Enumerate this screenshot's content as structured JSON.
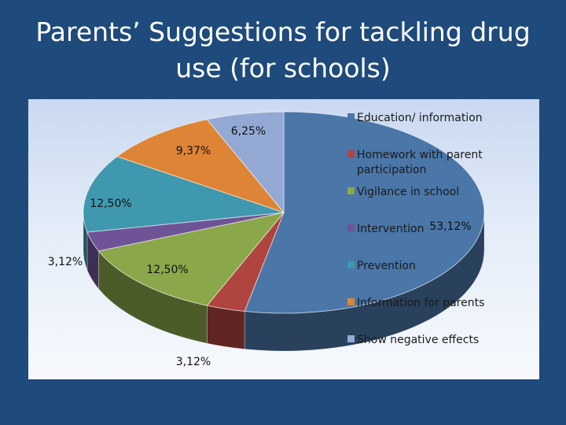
{
  "slide": {
    "title_line1": "Parents’ Suggestions for tackling drug",
    "title_line2": "use (for schools)"
  },
  "chart_data": {
    "type": "pie",
    "title": "",
    "three_d": true,
    "legend_position": "right",
    "slices": [
      {
        "name": "Education/ information",
        "value": 53.12,
        "label": "53,12%",
        "color": "#4a76a8"
      },
      {
        "name": "Homework with parent participation",
        "value": 3.12,
        "label": "3,12%",
        "color": "#b0453f"
      },
      {
        "name": "Vigilance in school",
        "value": 12.5,
        "label": "12,50%",
        "color": "#8aa74a"
      },
      {
        "name": "Intervention",
        "value": 3.12,
        "label": "3,12%",
        "color": "#6e5496"
      },
      {
        "name": "Prevention",
        "value": 12.5,
        "label": "12,50%",
        "color": "#3f98ad"
      },
      {
        "name": "Information for parents",
        "value": 9.37,
        "label": "9,37%",
        "color": "#de8436"
      },
      {
        "name": "Show negative effects",
        "value": 6.25,
        "label": "6,25%",
        "color": "#93a9d3"
      }
    ]
  }
}
